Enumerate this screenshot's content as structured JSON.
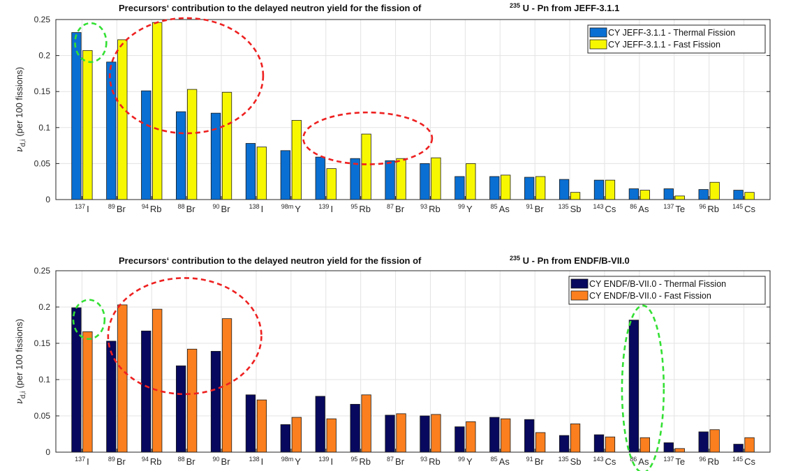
{
  "chart_data": [
    {
      "type": "bar",
      "title_parts": [
        "Precursors‘ contribution to the delayed neutron yield for the fission of",
        "235",
        " U - Pn from JEFF-3.1.1"
      ],
      "ylabel": "(per 100 fissions)",
      "ylabel_symbol": "ν",
      "ylabel_sub": "d,i",
      "ylim": [
        0,
        0.25
      ],
      "yticks": [
        "0",
        "0.05",
        "0.1",
        "0.15",
        "0.2",
        "0.25"
      ],
      "grid": true,
      "legend_position": "top-right",
      "categories": [
        {
          "mass": "137",
          "el": "I"
        },
        {
          "mass": "89",
          "el": "Br"
        },
        {
          "mass": "94",
          "el": "Rb"
        },
        {
          "mass": "88",
          "el": "Br"
        },
        {
          "mass": "90",
          "el": "Br"
        },
        {
          "mass": "138",
          "el": "I"
        },
        {
          "mass": "98m",
          "el": "Y"
        },
        {
          "mass": "139",
          "el": "I"
        },
        {
          "mass": "95",
          "el": "Rb"
        },
        {
          "mass": "87",
          "el": "Br"
        },
        {
          "mass": "93",
          "el": "Rb"
        },
        {
          "mass": "99",
          "el": "Y"
        },
        {
          "mass": "85",
          "el": "As"
        },
        {
          "mass": "91",
          "el": "Br"
        },
        {
          "mass": "135",
          "el": "Sb"
        },
        {
          "mass": "143",
          "el": "Cs"
        },
        {
          "mass": "86",
          "el": "As"
        },
        {
          "mass": "137",
          "el": "Te"
        },
        {
          "mass": "96",
          "el": "Rb"
        },
        {
          "mass": "145",
          "el": "Cs"
        }
      ],
      "series": [
        {
          "name": "CY JEFF-3.1.1 - Thermal Fission",
          "color": "#0a6fd2",
          "values": [
            0.232,
            0.191,
            0.151,
            0.122,
            0.12,
            0.078,
            0.068,
            0.059,
            0.057,
            0.054,
            0.05,
            0.032,
            0.032,
            0.031,
            0.028,
            0.027,
            0.015,
            0.015,
            0.014,
            0.013
          ]
        },
        {
          "name": "CY JEFF-3.1.1 - Fast Fission",
          "color": "#f7f700",
          "values": [
            0.207,
            0.222,
            0.246,
            0.153,
            0.149,
            0.073,
            0.11,
            0.043,
            0.091,
            0.057,
            0.058,
            0.05,
            0.034,
            0.032,
            0.01,
            0.027,
            0.013,
            0.005,
            0.024,
            0.01
          ]
        }
      ],
      "annotations": [
        {
          "color": "#ee2020",
          "cx": 3.0,
          "cy": 0.172,
          "rx": 2.2,
          "ry": 0.08
        },
        {
          "color": "#ee2020",
          "cx": 8.2,
          "cy": 0.085,
          "rx": 1.85,
          "ry": 0.036
        },
        {
          "color": "#33e033",
          "cx": 0.25,
          "cy": 0.218,
          "rx": 0.45,
          "ry": 0.027
        }
      ]
    },
    {
      "type": "bar",
      "title_parts": [
        "Precursors‘ contribution to the delayed neutron yield for the fission of",
        "235",
        " U - Pn from ENDF/B-VII.0"
      ],
      "ylabel": "(per 100 fissions)",
      "ylabel_symbol": "ν",
      "ylabel_sub": "d,i",
      "ylim": [
        0,
        0.25
      ],
      "yticks": [
        "0",
        "0.05",
        "0.1",
        "0.15",
        "0.2",
        "0.25"
      ],
      "grid": true,
      "legend_position": "top-right",
      "categories": [
        {
          "mass": "137",
          "el": "I"
        },
        {
          "mass": "89",
          "el": "Br"
        },
        {
          "mass": "94",
          "el": "Rb"
        },
        {
          "mass": "88",
          "el": "Br"
        },
        {
          "mass": "90",
          "el": "Br"
        },
        {
          "mass": "138",
          "el": "I"
        },
        {
          "mass": "98m",
          "el": "Y"
        },
        {
          "mass": "139",
          "el": "I"
        },
        {
          "mass": "95",
          "el": "Rb"
        },
        {
          "mass": "87",
          "el": "Br"
        },
        {
          "mass": "93",
          "el": "Rb"
        },
        {
          "mass": "99",
          "el": "Y"
        },
        {
          "mass": "85",
          "el": "As"
        },
        {
          "mass": "91",
          "el": "Br"
        },
        {
          "mass": "135",
          "el": "Sb"
        },
        {
          "mass": "143",
          "el": "Cs"
        },
        {
          "mass": "86",
          "el": "As"
        },
        {
          "mass": "137",
          "el": "Te"
        },
        {
          "mass": "96",
          "el": "Rb"
        },
        {
          "mass": "145",
          "el": "Cs"
        }
      ],
      "series": [
        {
          "name": "CY ENDF/B-VII.0 - Thermal Fission",
          "color": "#07085e",
          "values": [
            0.199,
            0.153,
            0.167,
            0.119,
            0.139,
            0.079,
            0.038,
            0.077,
            0.066,
            0.051,
            0.05,
            0.035,
            0.048,
            0.045,
            0.023,
            0.024,
            0.182,
            0.013,
            0.028,
            0.011
          ]
        },
        {
          "name": "CY ENDF/B-VII.0 - Fast Fission",
          "color": "#fb7f1e",
          "values": [
            0.166,
            0.203,
            0.197,
            0.142,
            0.184,
            0.072,
            0.048,
            0.046,
            0.079,
            0.053,
            0.052,
            0.042,
            0.046,
            0.027,
            0.039,
            0.021,
            0.02,
            0.005,
            0.031,
            0.02
          ]
        }
      ],
      "annotations": [
        {
          "color": "#ee2020",
          "cx": 2.95,
          "cy": 0.16,
          "rx": 2.2,
          "ry": 0.08
        },
        {
          "color": "#33e033",
          "cx": 16.1,
          "cy": 0.087,
          "rx": 0.6,
          "ry": 0.115
        },
        {
          "color": "#33e033",
          "cx": 0.2,
          "cy": 0.183,
          "rx": 0.45,
          "ry": 0.027
        }
      ]
    }
  ]
}
